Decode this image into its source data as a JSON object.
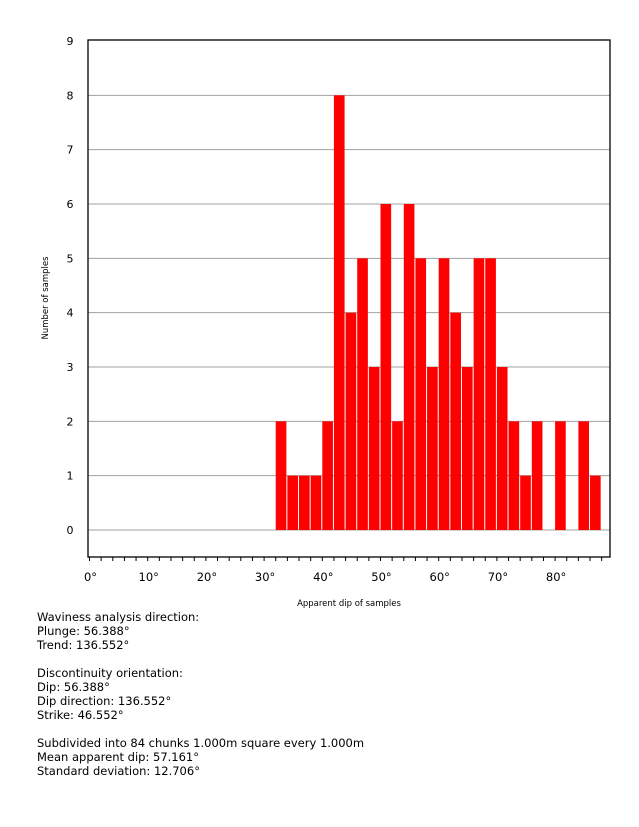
{
  "chart_data": {
    "type": "bar",
    "title": "",
    "xlabel": "Apparent dip of samples",
    "ylabel": "Number of samples",
    "bin_width": 2,
    "bin_starts": [
      32,
      34,
      36,
      38,
      40,
      42,
      44,
      46,
      48,
      50,
      52,
      54,
      56,
      58,
      60,
      62,
      64,
      66,
      68,
      70,
      72,
      74,
      76,
      78,
      80,
      82,
      84,
      86
    ],
    "values": [
      2,
      1,
      1,
      1,
      2,
      8,
      4,
      5,
      3,
      6,
      2,
      6,
      5,
      3,
      5,
      4,
      3,
      5,
      5,
      3,
      2,
      1,
      2,
      0,
      2,
      0,
      2,
      1
    ],
    "xlim": [
      0,
      90
    ],
    "ylim": [
      0,
      9
    ],
    "xticks": [
      "0°",
      "10°",
      "20°",
      "30°",
      "40°",
      "50°",
      "60°",
      "70°",
      "80°"
    ],
    "yticks": [
      "0",
      "1",
      "2",
      "3",
      "4",
      "5",
      "6",
      "7",
      "8",
      "9"
    ],
    "grid": true,
    "bar_color": "#ff0000"
  },
  "info": {
    "waviness_heading": "Waviness analysis direction:",
    "plunge": "Plunge: 56.388°",
    "trend": "Trend: 136.552°",
    "disc_heading": "Discontinuity orientation:",
    "dip": "Dip: 56.388°",
    "dip_direction": "Dip direction: 136.552°",
    "strike": "Strike: 46.552°",
    "subdivided": "Subdivided into 84 chunks 1.000m square every 1.000m",
    "mean": "Mean apparent dip: 57.161°",
    "std": "Standard deviation: 12.706°"
  }
}
